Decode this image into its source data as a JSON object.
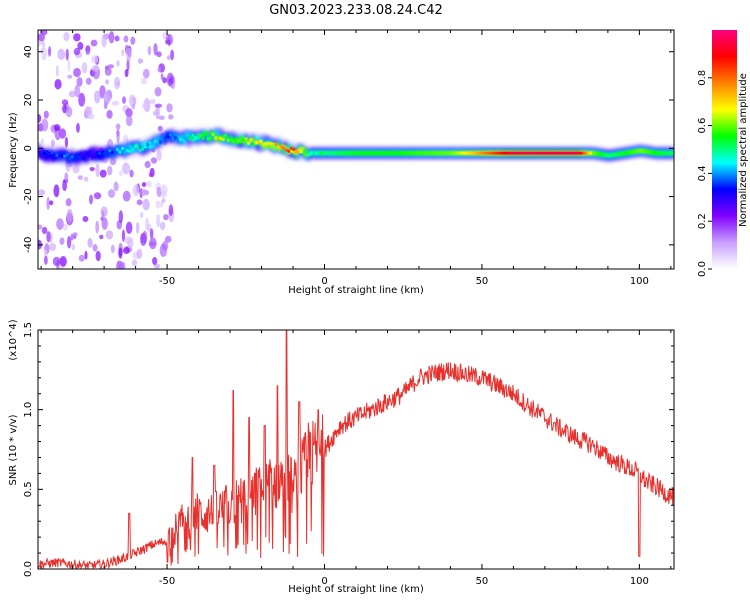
{
  "title": "GN03.2023.233.08.24.C42",
  "chart_data": [
    {
      "type": "heatmap",
      "xlabel": "Height of straight line (km)",
      "ylabel": "Frequency (Hz)",
      "xlim": [
        -91,
        111
      ],
      "ylim": [
        -50,
        49
      ],
      "xticks": [
        -50,
        0,
        50,
        100
      ],
      "yticks": [
        -40,
        -20,
        0,
        20,
        40
      ],
      "grid": false,
      "colorbar": {
        "label": "Normalized spectral amplitude",
        "range": [
          0,
          1
        ],
        "ticks": [
          "0.0",
          "0.2",
          "0.4",
          "0.6",
          "0.8"
        ],
        "colors": [
          "#ffffff",
          "#c8a0ff",
          "#8000ff",
          "#0000ff",
          "#00ffff",
          "#00ff00",
          "#ffff00",
          "#ff8000",
          "#ff0000",
          "#ff0080"
        ]
      },
      "ridge": {
        "x": [
          -91,
          -85,
          -80,
          -75,
          -70,
          -65,
          -60,
          -55,
          -50,
          -45,
          -40,
          -35,
          -30,
          -25,
          -20,
          -15,
          -10,
          -5,
          0,
          10,
          20,
          40,
          60,
          80,
          85,
          90,
          95,
          100,
          105,
          111
        ],
        "freq": [
          -2,
          -3,
          -4,
          -3,
          -2,
          -1,
          0,
          2,
          5,
          4,
          5,
          5,
          4,
          3,
          2,
          1,
          -1,
          -2,
          -2,
          -2,
          -2,
          -2,
          -2,
          -2,
          -2,
          -3,
          -2,
          -1,
          -2,
          -2
        ],
        "amplitude": [
          0.3,
          0.35,
          0.35,
          0.3,
          0.35,
          0.4,
          0.45,
          0.45,
          0.35,
          0.45,
          0.5,
          0.6,
          0.55,
          0.6,
          0.65,
          0.7,
          0.9,
          0.5,
          0.5,
          0.55,
          0.55,
          0.6,
          0.95,
          0.95,
          0.6,
          0.5,
          0.55,
          0.6,
          0.55,
          0.5
        ]
      }
    },
    {
      "type": "line",
      "xlabel": "Height of straight line (km)",
      "ylabel": "SNR (10 * v/v)",
      "y_multiplier": "(x10^4)",
      "xlim": [
        -91,
        111
      ],
      "ylim": [
        0,
        1.5
      ],
      "xticks": [
        -50,
        0,
        50,
        100
      ],
      "yticks": [
        "0.0",
        "0.5",
        "1.0",
        "1.5"
      ],
      "color": "#e8302c",
      "x": [
        -91,
        -85,
        -80,
        -75,
        -70,
        -65,
        -60,
        -55,
        -50,
        -45,
        -40,
        -35,
        -30,
        -25,
        -20,
        -15,
        -12,
        -10,
        -5,
        0,
        5,
        10,
        15,
        20,
        25,
        30,
        35,
        40,
        45,
        50,
        55,
        60,
        65,
        70,
        75,
        80,
        85,
        90,
        95,
        98,
        100,
        102,
        105,
        108,
        111
      ],
      "snr": [
        0.03,
        0.04,
        0.03,
        0.02,
        0.03,
        0.06,
        0.1,
        0.15,
        0.18,
        0.3,
        0.35,
        0.35,
        0.4,
        0.45,
        0.5,
        0.55,
        0.6,
        0.5,
        0.7,
        0.75,
        0.9,
        0.95,
        1.0,
        1.05,
        1.1,
        1.2,
        1.23,
        1.25,
        1.22,
        1.2,
        1.15,
        1.1,
        1.02,
        0.95,
        0.88,
        0.82,
        0.78,
        0.7,
        0.65,
        0.62,
        0.6,
        0.55,
        0.52,
        0.48,
        0.45
      ],
      "spikes": [
        {
          "x": -62,
          "snr": 0.35
        },
        {
          "x": -42,
          "snr": 0.7
        },
        {
          "x": -35,
          "snr": 0.65
        },
        {
          "x": -29,
          "snr": 1.12
        },
        {
          "x": -24,
          "snr": 0.95
        },
        {
          "x": -19,
          "snr": 0.9
        },
        {
          "x": -15,
          "snr": 1.15
        },
        {
          "x": -12,
          "snr": 1.5
        },
        {
          "x": -8,
          "snr": 1.05
        },
        {
          "x": -2,
          "snr": 1.0
        },
        {
          "x": 100,
          "snr": 0.08
        }
      ]
    }
  ]
}
